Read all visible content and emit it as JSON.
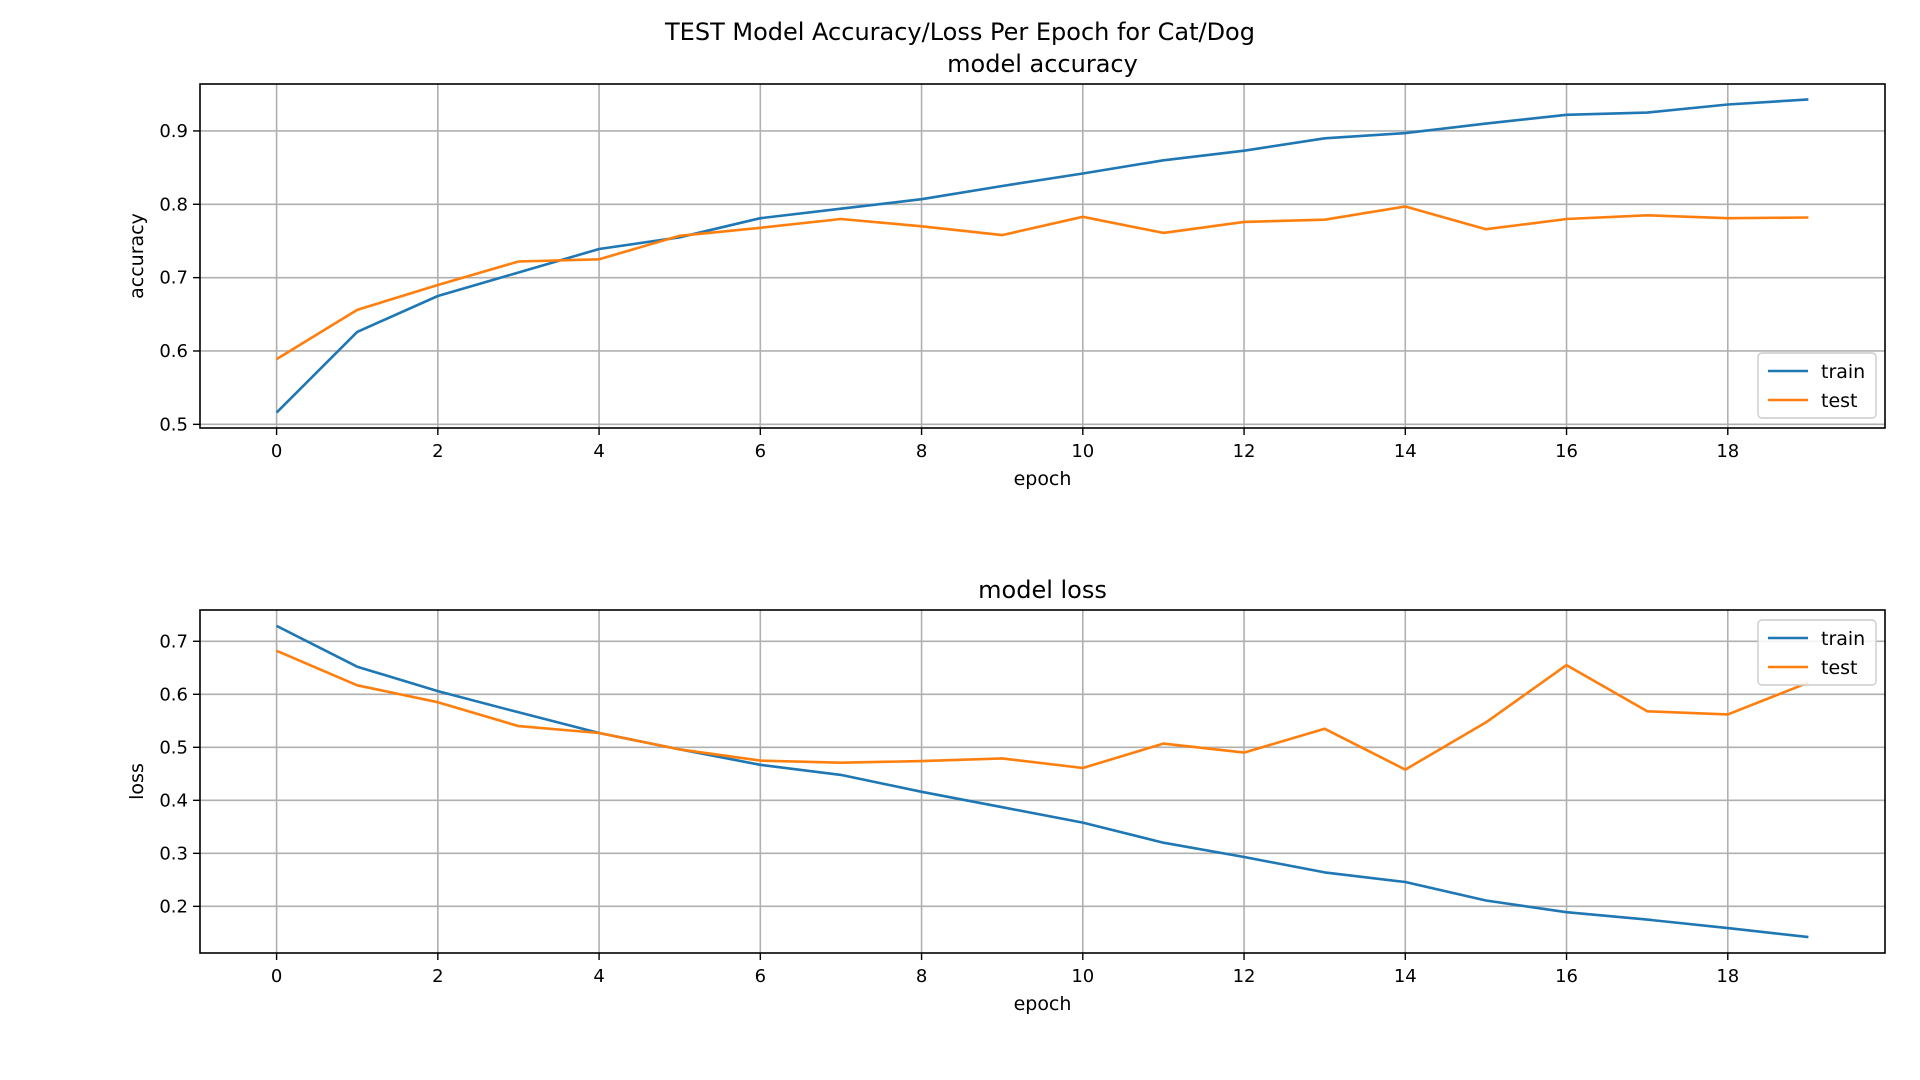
{
  "figure": {
    "suptitle": "TEST Model Accuracy/Loss Per Epoch for Cat/Dog"
  },
  "chart_data": [
    {
      "type": "line",
      "title": "model accuracy",
      "xlabel": "epoch",
      "ylabel": "accuracy",
      "xlim": [
        -0.95,
        19.95
      ],
      "ylim": [
        0.495,
        0.964
      ],
      "xticks": [
        0,
        2,
        4,
        6,
        8,
        10,
        12,
        14,
        16,
        18
      ],
      "xtick_labels": [
        "0",
        "2",
        "4",
        "6",
        "8",
        "10",
        "12",
        "14",
        "16",
        "18"
      ],
      "yticks": [
        0.5,
        0.6,
        0.7,
        0.8,
        0.9
      ],
      "ytick_labels": [
        "0.5",
        "0.6",
        "0.7",
        "0.8",
        "0.9"
      ],
      "grid": true,
      "legend_position": "lower-right",
      "x": [
        0,
        1,
        2,
        3,
        4,
        5,
        6,
        7,
        8,
        9,
        10,
        11,
        12,
        13,
        14,
        15,
        16,
        17,
        18,
        19
      ],
      "series": [
        {
          "name": "train",
          "color": "#1f77b4",
          "values": [
            0.516,
            0.626,
            0.675,
            0.707,
            0.739,
            0.755,
            0.781,
            0.794,
            0.807,
            0.825,
            0.842,
            0.86,
            0.873,
            0.89,
            0.897,
            0.91,
            0.922,
            0.925,
            0.936,
            0.943
          ]
        },
        {
          "name": "test",
          "color": "#ff7f0e",
          "values": [
            0.589,
            0.656,
            0.69,
            0.722,
            0.725,
            0.757,
            0.768,
            0.78,
            0.77,
            0.758,
            0.783,
            0.761,
            0.776,
            0.779,
            0.797,
            0.766,
            0.78,
            0.785,
            0.781,
            0.782
          ]
        }
      ]
    },
    {
      "type": "line",
      "title": "model loss",
      "xlabel": "epoch",
      "ylabel": "loss",
      "xlim": [
        -0.95,
        19.95
      ],
      "ylim": [
        0.112,
        0.759
      ],
      "xticks": [
        0,
        2,
        4,
        6,
        8,
        10,
        12,
        14,
        16,
        18
      ],
      "xtick_labels": [
        "0",
        "2",
        "4",
        "6",
        "8",
        "10",
        "12",
        "14",
        "16",
        "18"
      ],
      "yticks": [
        0.2,
        0.3,
        0.4,
        0.5,
        0.6,
        0.7
      ],
      "ytick_labels": [
        "0.2",
        "0.3",
        "0.4",
        "0.5",
        "0.6",
        "0.7"
      ],
      "grid": true,
      "legend_position": "upper-right",
      "x": [
        0,
        1,
        2,
        3,
        4,
        5,
        6,
        7,
        8,
        9,
        10,
        11,
        12,
        13,
        14,
        15,
        16,
        17,
        18,
        19
      ],
      "series": [
        {
          "name": "train",
          "color": "#1f77b4",
          "values": [
            0.729,
            0.652,
            0.606,
            0.566,
            0.527,
            0.496,
            0.467,
            0.448,
            0.416,
            0.387,
            0.358,
            0.32,
            0.293,
            0.264,
            0.246,
            0.211,
            0.189,
            0.175,
            0.159,
            0.142
          ]
        },
        {
          "name": "test",
          "color": "#ff7f0e",
          "values": [
            0.682,
            0.617,
            0.585,
            0.54,
            0.527,
            0.496,
            0.475,
            0.471,
            0.474,
            0.479,
            0.461,
            0.507,
            0.49,
            0.535,
            0.458,
            0.547,
            0.655,
            0.568,
            0.562,
            0.622
          ]
        }
      ]
    }
  ]
}
